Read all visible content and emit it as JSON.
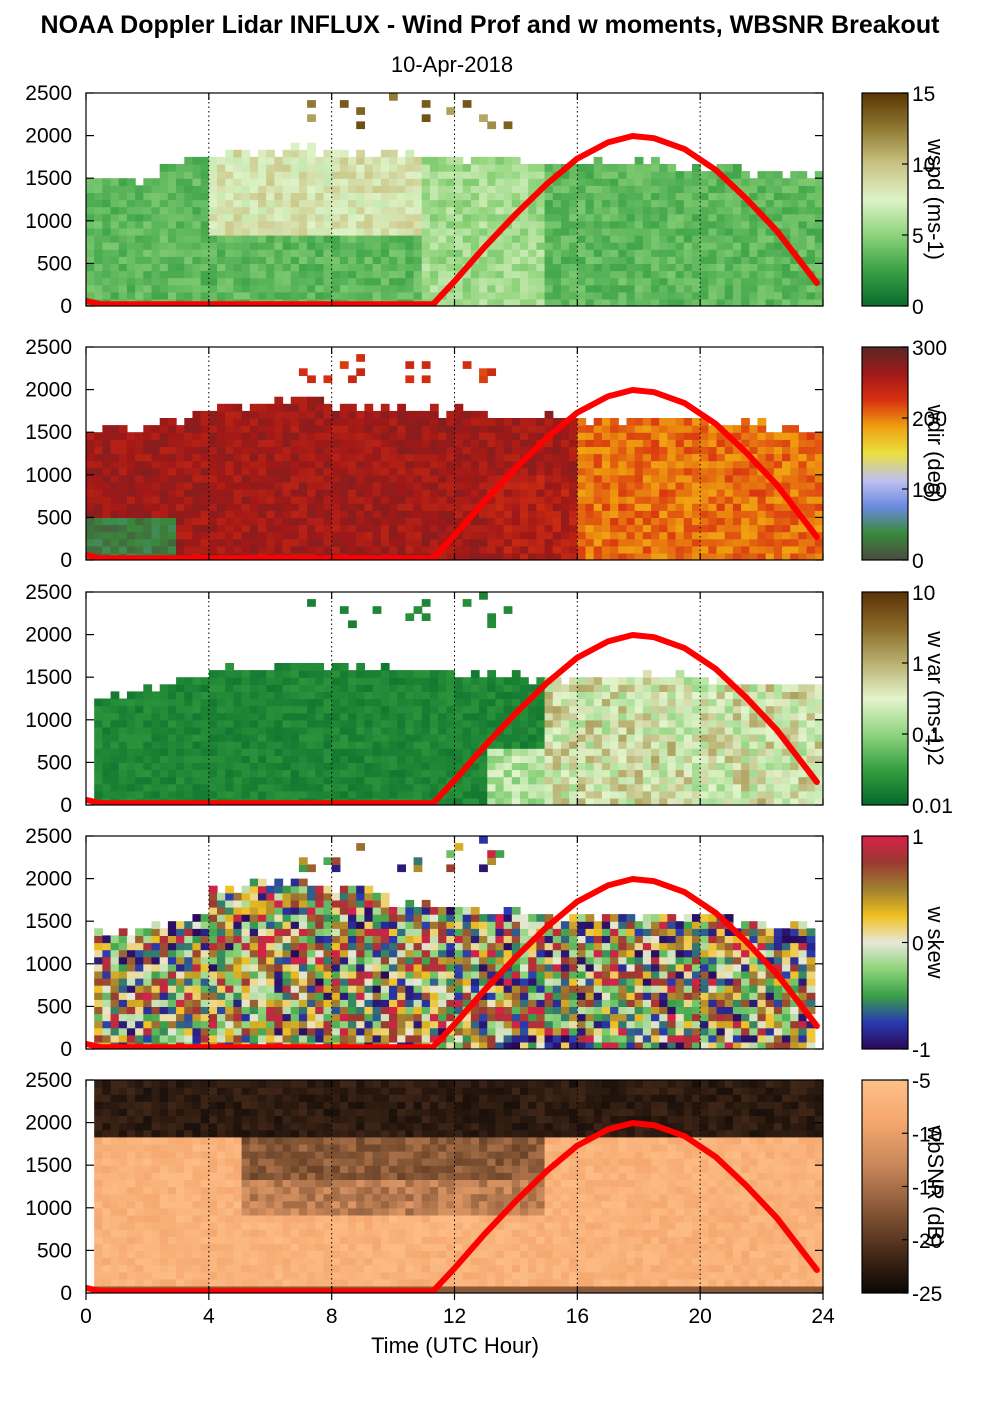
{
  "title": "NOAA Doppler Lidar INFLUX - Wind Prof and w moments, WBSNR Breakout",
  "subtitle": "10-Apr-2018",
  "chart_data": {
    "type": "heatmap",
    "xlabel": "Time (UTC Hour)",
    "xlim": [
      0,
      24
    ],
    "xticks": [
      "0",
      "4",
      "8",
      "12",
      "16",
      "20",
      "24"
    ],
    "ylim": [
      0,
      2500
    ],
    "yticks": [
      "0",
      "500",
      "1000",
      "1500",
      "2000",
      "2500"
    ],
    "vertical_gridlines": [
      4,
      8,
      12,
      16,
      20,
      24
    ],
    "overlay_line": {
      "color": "#ff0000",
      "points": [
        [
          0,
          60
        ],
        [
          0.5,
          20
        ],
        [
          11.3,
          20
        ],
        [
          12,
          290
        ],
        [
          13,
          700
        ],
        [
          14,
          1080
        ],
        [
          15,
          1430
        ],
        [
          16,
          1730
        ],
        [
          17,
          1920
        ],
        [
          17.8,
          1995
        ],
        [
          18.5,
          1970
        ],
        [
          19.5,
          1840
        ],
        [
          20.5,
          1600
        ],
        [
          21.5,
          1260
        ],
        [
          22.5,
          880
        ],
        [
          23.8,
          270
        ]
      ]
    },
    "panels": [
      {
        "name": "wspd",
        "colorbar_label": "wspd (ms-1)",
        "colorbar_ticks": [
          "15",
          "10",
          "5",
          "0"
        ],
        "colors": [
          "#0a6b2c",
          "#3aa146",
          "#8ed37a",
          "#def3c8",
          "#c9c383",
          "#8f7a32",
          "#5b3504"
        ]
      },
      {
        "name": "wdir",
        "colorbar_label": "wdir (deg)",
        "colorbar_ticks": [
          "300",
          "200",
          "100",
          "0"
        ],
        "colors": [
          "#4a4a42",
          "#3a8a3a",
          "#6a8ae0",
          "#c0c0f0",
          "#e8e040",
          "#f0a010",
          "#d83010",
          "#a01818",
          "#5a2828"
        ]
      },
      {
        "name": "w var",
        "colorbar_label": "w var (ms-1)2",
        "colorbar_ticks": [
          "10",
          "1",
          "0.1",
          "0.01"
        ],
        "colors": [
          "#04682a",
          "#35a040",
          "#90d480",
          "#e4f4cc",
          "#b8b070",
          "#8a6a28",
          "#5a3208"
        ]
      },
      {
        "name": "w skew",
        "colorbar_label": "w skew",
        "colorbar_ticks": [
          "1",
          "0",
          "-1"
        ],
        "colors": [
          "#2a0858",
          "#2a3ab0",
          "#3aa048",
          "#8ed47a",
          "#e8e8d8",
          "#f0c020",
          "#a08030",
          "#9a3a30",
          "#d8204a"
        ]
      },
      {
        "name": "wbSNR",
        "colorbar_label": "wbSNR (dB)",
        "colorbar_ticks": [
          "-5",
          "-10",
          "-15",
          "-20",
          "-25"
        ],
        "colors": [
          "#0a0605",
          "#4a2c1a",
          "#8a5a38",
          "#c8875a",
          "#f4a66e",
          "#ffc08a"
        ]
      }
    ]
  }
}
